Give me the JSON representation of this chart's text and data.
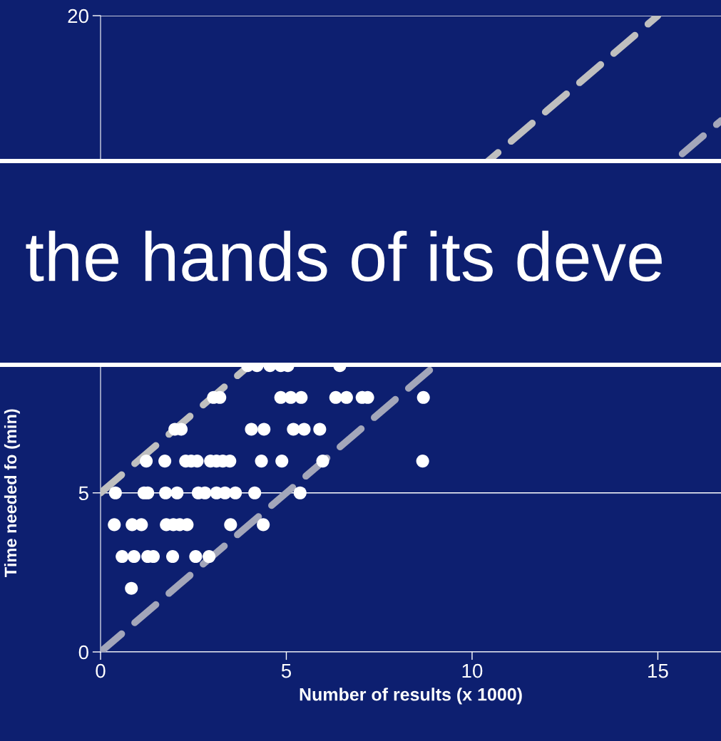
{
  "chart_data": {
    "type": "scatter",
    "xlabel": "Number of results (x 1000)",
    "ylabel": "Time needed fo (min)",
    "annotations": [
      "the hands of its deve"
    ],
    "xlim": [
      0,
      16.7
    ],
    "ylim": [
      0,
      20
    ],
    "xticks": [
      0,
      5,
      10,
      15
    ],
    "yticks": [
      0,
      5,
      20
    ],
    "grid": "y",
    "marker": "circle",
    "legend": false,
    "series": [
      {
        "color": "#ffffff",
        "x": [
          3.96,
          4.21,
          4.56,
          4.85,
          5.04,
          6.44,
          3.04,
          3.21,
          4.85,
          5.12,
          5.4,
          6.33,
          6.62,
          7.04,
          7.19,
          8.69,
          2.0,
          2.17,
          4.06,
          4.4,
          5.19,
          5.48,
          5.9,
          1.23,
          1.73,
          2.29,
          2.44,
          2.6,
          2.96,
          3.12,
          3.29,
          3.48,
          4.33,
          4.88,
          5.98,
          8.67,
          0.4,
          1.17,
          1.27,
          1.75,
          2.06,
          2.63,
          2.81,
          3.12,
          3.35,
          3.63,
          4.15,
          5.37,
          0.37,
          0.85,
          1.1,
          1.77,
          1.96,
          2.13,
          2.33,
          3.5,
          4.38,
          0.58,
          0.9,
          1.27,
          1.42,
          1.94,
          2.56,
          2.92,
          0.83
        ],
        "values": [
          9,
          9,
          9,
          9,
          9,
          9,
          8,
          8,
          8,
          8,
          8,
          8,
          8,
          8,
          8,
          8,
          7,
          7,
          7,
          7,
          7,
          7,
          7,
          6,
          6,
          6,
          6,
          6,
          6,
          6,
          6,
          6,
          6,
          6,
          6,
          6,
          5,
          5,
          5,
          5,
          5,
          5,
          5,
          5,
          5,
          5,
          5,
          5,
          4,
          4,
          4,
          4,
          4,
          4,
          4,
          4,
          4,
          3,
          3,
          3,
          3,
          3,
          3,
          3,
          2
        ]
      },
      {
        "type": "line",
        "color": "#bfbfbf",
        "line_style": "dashed",
        "marker": "none",
        "x": [
          0,
          15
        ],
        "values": [
          5,
          20
        ]
      },
      {
        "type": "line",
        "color": "#a3a6ba",
        "line_style": "dashed",
        "marker": "none",
        "x": [
          0,
          16.7
        ],
        "values": [
          0,
          16.7
        ]
      }
    ]
  }
}
